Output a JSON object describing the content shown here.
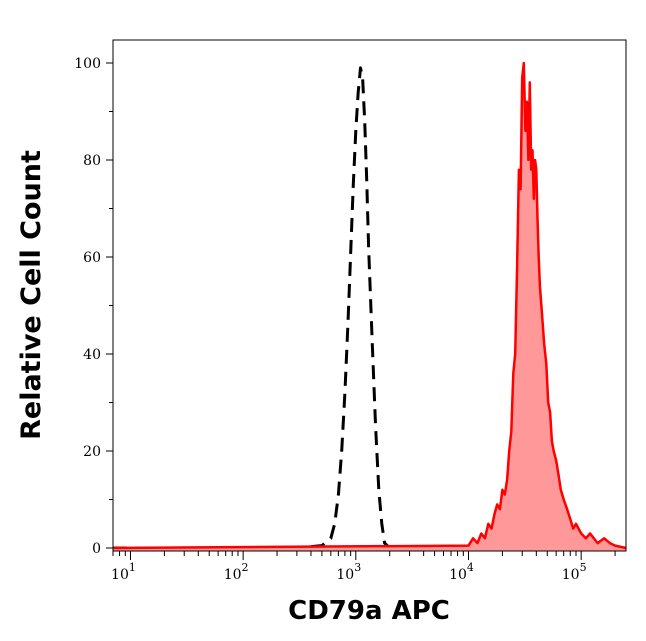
{
  "chart_data": {
    "type": "area",
    "xlabel": "CD79a APC",
    "ylabel": "Relative Cell Count",
    "x_scale": "log",
    "xlim": [
      7,
      250000
    ],
    "ylim": [
      0,
      100
    ],
    "x_tick_labels": [
      {
        "value": 10,
        "base": "10",
        "exp": "1"
      },
      {
        "value": 100,
        "base": "10",
        "exp": "2"
      },
      {
        "value": 1000,
        "base": "10",
        "exp": "3"
      },
      {
        "value": 10000,
        "base": "10",
        "exp": "4"
      },
      {
        "value": 100000,
        "base": "10",
        "exp": "5"
      }
    ],
    "y_ticks": [
      0,
      20,
      40,
      60,
      80,
      100
    ],
    "grid": false,
    "legend": "none",
    "series": [
      {
        "style": "dashed",
        "color": "#000000",
        "x": [
          7,
          300,
          500,
          600,
          650,
          700,
          750,
          800,
          850,
          900,
          950,
          1000,
          1050,
          1100,
          1150,
          1200,
          1250,
          1300,
          1400,
          1500,
          1600,
          1700,
          1800,
          2000,
          250000
        ],
        "y": [
          0,
          0,
          0.5,
          2,
          5,
          11,
          20,
          32,
          46,
          61,
          75,
          86,
          94,
          99,
          97,
          88,
          76,
          62,
          42,
          25,
          12,
          5,
          1,
          0,
          0
        ]
      },
      {
        "style": "filled",
        "color": "#ff0000",
        "fill": "#ff9999",
        "x": [
          7,
          10000,
          11000,
          12000,
          13000,
          14000,
          15000,
          16000,
          17000,
          18000,
          19000,
          20000,
          21000,
          22000,
          23000,
          24000,
          25000,
          26000,
          27000,
          28000,
          29000,
          30000,
          31000,
          32000,
          33000,
          34000,
          35000,
          36000,
          37000,
          38000,
          39000,
          40000,
          41000,
          42000,
          43000,
          45000,
          47000,
          49000,
          51000,
          53000,
          55000,
          57000,
          60000,
          63000,
          66000,
          70000,
          75000,
          80000,
          85000,
          90000,
          100000,
          110000,
          120000,
          140000,
          160000,
          180000,
          200000,
          250000
        ],
        "y": [
          0,
          0.5,
          2,
          1,
          3,
          2,
          5,
          4,
          7,
          9,
          8,
          12,
          11,
          14,
          20,
          24,
          36,
          40,
          58,
          78,
          74,
          97,
          100,
          86,
          92,
          80,
          96,
          78,
          82,
          72,
          80,
          78,
          68,
          60,
          54,
          48,
          42,
          38,
          30,
          28,
          22,
          20,
          18,
          15,
          12,
          10,
          8,
          6,
          4,
          5,
          3,
          2,
          3,
          1,
          2,
          1,
          0.5,
          0
        ]
      }
    ]
  }
}
